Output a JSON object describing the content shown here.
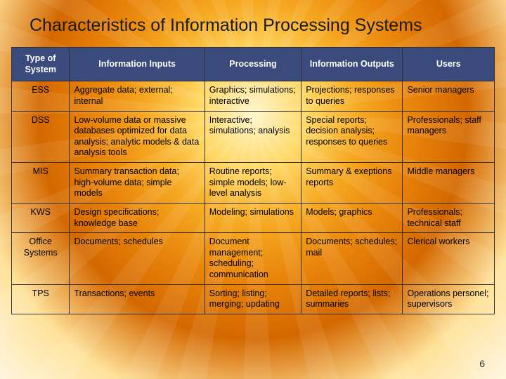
{
  "title": "Characteristics of Information Processing Systems",
  "page_number": "6",
  "table": {
    "header_bg": "#3a4a7a",
    "header_fg": "#ffffff",
    "border_color": "#333333",
    "columns": [
      "Type of System",
      "Information Inputs",
      "Processing",
      "Information Outputs",
      "Users"
    ],
    "rows": [
      {
        "type": "ESS",
        "inputs": "Aggregate data; external; internal",
        "processing": "Graphics; simulations; interactive",
        "outputs": "Projections; responses to queries",
        "users": "Senior managers"
      },
      {
        "type": "DSS",
        "inputs": "Low-volume data or massive databases optimized for data analysis; analytic models & data analysis tools",
        "processing": "Interactive; simulations; analysis",
        "outputs": "Special reports; decision analysis; responses to queries",
        "users": "Professionals; staff managers"
      },
      {
        "type": "MIS",
        "inputs": "Summary transaction data; high-volume data; simple models",
        "processing": "Routine reports; simple models; low-level analysis",
        "outputs": "Summary & exeptions reports",
        "users": "Middle managers"
      },
      {
        "type": "KWS",
        "inputs": "Design specifications; knowledge base",
        "processing": "Modeling; simulations",
        "outputs": "Models; graphics",
        "users": "Professionals; technical staff"
      },
      {
        "type": "Office Systems",
        "inputs": "Documents; schedules",
        "processing": "Document management; scheduling; communication",
        "outputs": "Documents; schedules; mail",
        "users": "Clerical workers"
      },
      {
        "type": "TPS",
        "inputs": "Transactions; events",
        "processing": "Sorting; listing; merging; updating",
        "outputs": "Detailed reports; lists; summaries",
        "users": "Operations personel; supervisors"
      }
    ]
  }
}
